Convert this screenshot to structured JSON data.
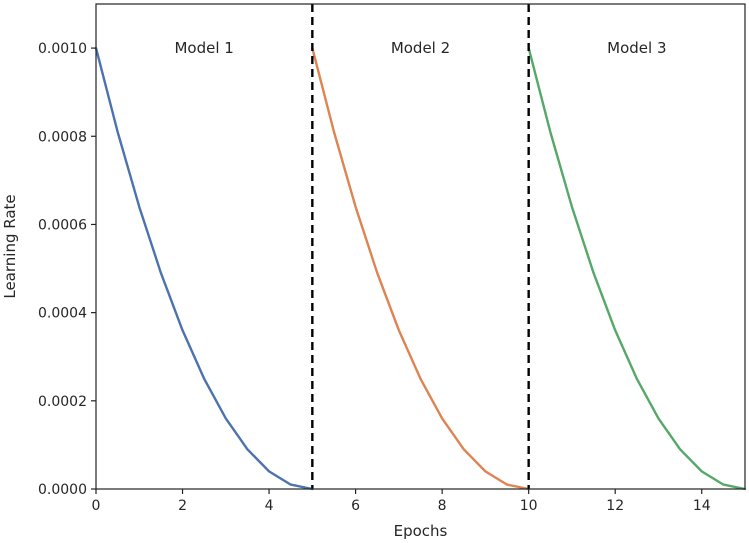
{
  "chart_data": {
    "type": "line",
    "title": "",
    "xlabel": "Epochs",
    "ylabel": "Learning Rate",
    "xlim": [
      0,
      15
    ],
    "ylim": [
      0,
      0.0011
    ],
    "xticks": [
      0,
      2,
      4,
      6,
      8,
      10,
      12,
      14
    ],
    "xtick_labels": [
      "0",
      "2",
      "4",
      "6",
      "8",
      "10",
      "12",
      "14"
    ],
    "yticks": [
      0,
      0.0002,
      0.0004,
      0.0006,
      0.0008,
      0.001
    ],
    "ytick_labels": [
      "0.0000",
      "0.0002",
      "0.0004",
      "0.0006",
      "0.0008",
      "0.0010"
    ],
    "grid": false,
    "vertical_lines": [
      5,
      10
    ],
    "annotations": [
      {
        "text": "Model 1",
        "x": 2.5,
        "y": 0.001
      },
      {
        "text": "Model 2",
        "x": 7.5,
        "y": 0.001
      },
      {
        "text": "Model 3",
        "x": 12.5,
        "y": 0.001
      }
    ],
    "series": [
      {
        "color": "#4c72b0",
        "x": [
          0,
          0.5,
          1,
          1.5,
          2,
          2.5,
          3,
          3.5,
          4,
          4.5,
          5
        ],
        "y": [
          0.001,
          0.00081,
          0.00064,
          0.00049,
          0.00036,
          0.00025,
          0.00016,
          9e-05,
          4e-05,
          1e-05,
          0
        ]
      },
      {
        "color": "#dd8452",
        "x": [
          5,
          5.5,
          6,
          6.5,
          7,
          7.5,
          8,
          8.5,
          9,
          9.5,
          10
        ],
        "y": [
          0.001,
          0.00081,
          0.00064,
          0.00049,
          0.00036,
          0.00025,
          0.00016,
          9e-05,
          4e-05,
          1e-05,
          0
        ]
      },
      {
        "color": "#55a868",
        "x": [
          10,
          10.5,
          11,
          11.5,
          12,
          12.5,
          13,
          13.5,
          14,
          14.5,
          15
        ],
        "y": [
          0.001,
          0.00081,
          0.00064,
          0.00049,
          0.00036,
          0.00025,
          0.00016,
          9e-05,
          4e-05,
          1e-05,
          0
        ]
      }
    ]
  }
}
